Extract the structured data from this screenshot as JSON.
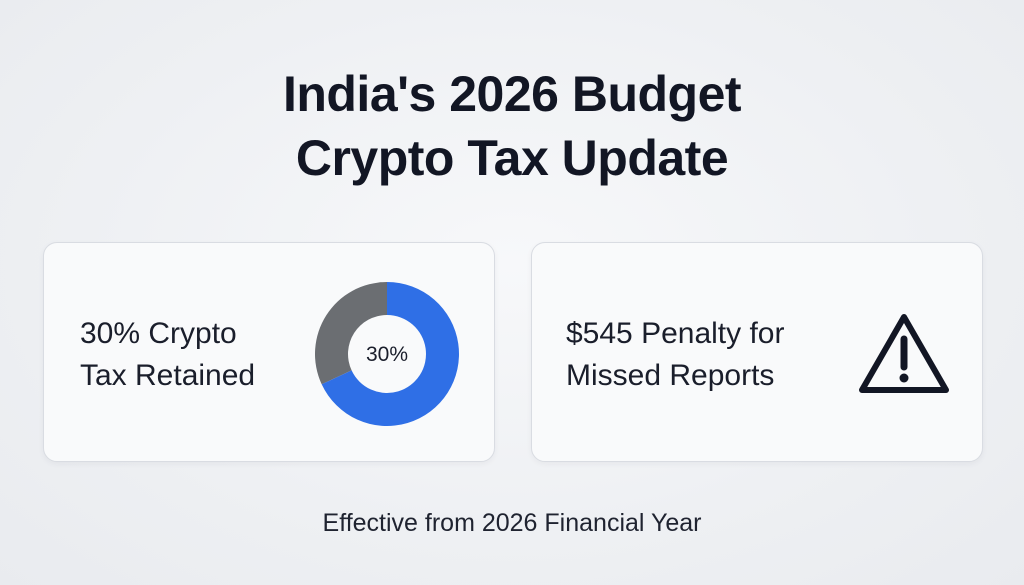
{
  "title": {
    "line1": "India's 2026 Budget",
    "line2": "Crypto Tax Update"
  },
  "cards": [
    {
      "line1": "30% Crypto",
      "line2": "Tax Retained",
      "donut_label": "30%",
      "donut_fraction": 0.3,
      "colors": {
        "highlight": "#2f6fe6",
        "remainder": "#6b6e72"
      }
    },
    {
      "line1": "$545 Penalty for",
      "line2": "Missed Reports",
      "icon": "warning-triangle-icon"
    }
  ],
  "footer": "Effective from 2026 Financial Year"
}
